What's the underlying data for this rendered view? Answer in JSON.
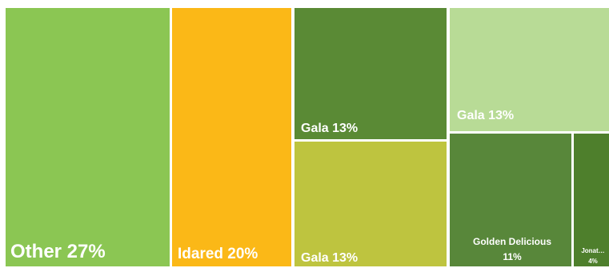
{
  "chart_data": {
    "type": "treemap",
    "title": "",
    "nodes": [
      {
        "label": "Other",
        "value_label": "27%",
        "value": 27,
        "color": "#8BC653"
      },
      {
        "label": "Idared",
        "value_label": "20%",
        "value": 20,
        "color": "#FBB817"
      },
      {
        "label": "Gala",
        "value_label": "13%",
        "value": 13,
        "color": "#5A8A35"
      },
      {
        "label": "Gala",
        "value_label": "13%",
        "value": 13,
        "color": "#BEC43F"
      },
      {
        "label": "Gala",
        "value_label": "13%",
        "value": 13,
        "color": "#B8DB96"
      },
      {
        "label": "Golden Delicious",
        "value_label": "11%",
        "value": 11,
        "color": "#58873A"
      },
      {
        "label": "Jonat…",
        "value_label": "4%",
        "value": 4,
        "color": "#4E7F2C"
      }
    ]
  }
}
